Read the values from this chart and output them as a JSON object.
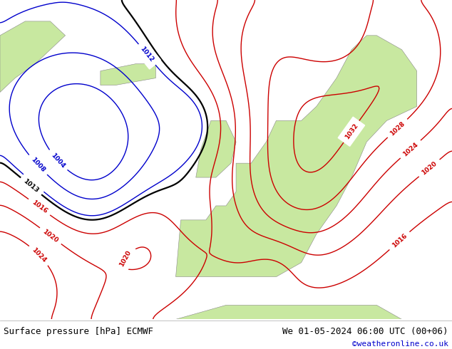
{
  "title_left": "Surface pressure [hPa] ECMWF",
  "title_right": "We 01-05-2024 06:00 UTC (00+06)",
  "watermark": "©weatheronline.co.uk",
  "bg_land": "#c8e8a0",
  "bg_sea": "#e0e0e0",
  "bg_figure": "#ffffff",
  "coast_color": "#888888",
  "contour_red": "#cc0000",
  "contour_blue": "#0000cc",
  "contour_black": "#000000",
  "text_footer": "#000000",
  "text_watermark": "#0000cc",
  "figsize": [
    6.34,
    4.9
  ],
  "dpi": 100,
  "lon_min": -45,
  "lon_max": 45,
  "lat_min": 30,
  "lat_max": 75,
  "footer_fontsize": 9,
  "watermark_fontsize": 8,
  "label_fontsize": 6.5
}
